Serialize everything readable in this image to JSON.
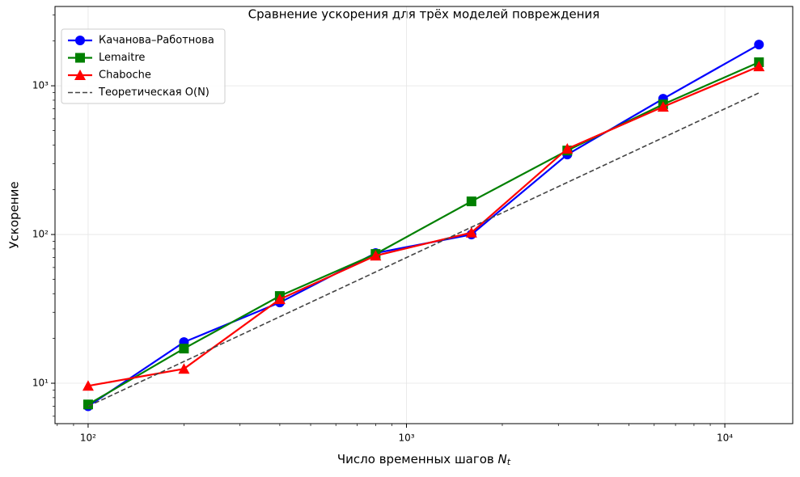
{
  "chart_data": {
    "type": "line",
    "title": "Сравнение ускорения для трёх моделей повреждения",
    "xlabel": {
      "text": "Число временных шагов",
      "symbol": "N",
      "subscript": "t"
    },
    "ylabel": "Ускорение",
    "x": [
      100,
      200,
      400,
      800,
      1600,
      3200,
      6400,
      12800
    ],
    "series": [
      {
        "name": "Качанова–Работнова",
        "color": "#0000ff",
        "marker": "circle",
        "dash": false,
        "values": [
          7.0,
          18.9,
          34.9,
          75,
          100,
          345,
          818,
          1892
        ]
      },
      {
        "name": "Lemaitre",
        "color": "#008000",
        "marker": "square",
        "dash": false,
        "values": [
          7.2,
          17.1,
          38.6,
          74,
          167,
          367,
          750,
          1440
        ]
      },
      {
        "name": "Chaboche",
        "color": "#ff0000",
        "marker": "triangle",
        "dash": false,
        "values": [
          9.6,
          12.5,
          36.7,
          72,
          103,
          377,
          722,
          1350
        ]
      },
      {
        "name": "Теоретическая O(N)",
        "color": "#444444",
        "marker": "none",
        "dash": true,
        "values": [
          7,
          14,
          28,
          56,
          112,
          224,
          448,
          896
        ]
      }
    ],
    "xscale": "log",
    "yscale": "log",
    "xlim": [
      78.7,
      16340
    ],
    "ylim": [
      5.35,
      3414
    ],
    "xticks": [
      {
        "value": 100,
        "label": "10²"
      },
      {
        "value": 1000,
        "label": "10³"
      },
      {
        "value": 10000,
        "label": "10⁴"
      }
    ],
    "yticks": [
      {
        "value": 10,
        "label": "10¹"
      },
      {
        "value": 100,
        "label": "10²"
      },
      {
        "value": 1000,
        "label": "10³"
      }
    ],
    "xminorticks": [
      80,
      90,
      200,
      300,
      400,
      500,
      600,
      700,
      800,
      900,
      2000,
      3000,
      4000,
      5000,
      6000,
      7000,
      8000,
      9000
    ],
    "yminorticks": [
      6,
      7,
      8,
      9,
      20,
      30,
      40,
      50,
      60,
      70,
      80,
      90,
      200,
      300,
      400,
      500,
      600,
      700,
      800,
      900,
      2000,
      3000
    ],
    "grid": true,
    "legend": "upper left"
  }
}
